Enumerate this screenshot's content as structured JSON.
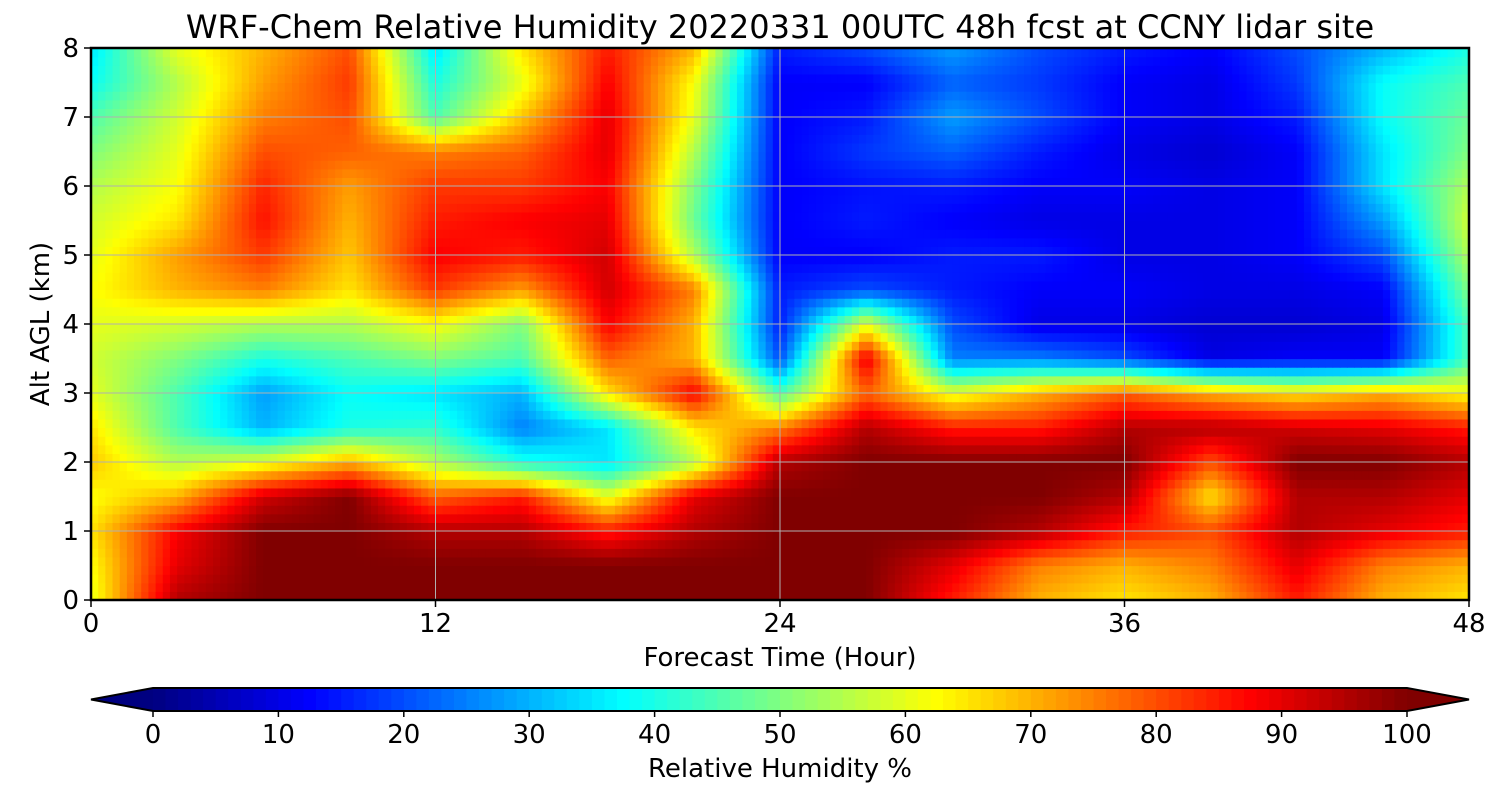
{
  "chart_data": {
    "type": "heatmap",
    "title": "WRF-Chem Relative Humidity 20220331 00UTC 48h fcst at CCNY lidar site",
    "xlabel": "Forecast Time (Hour)",
    "ylabel": "Alt AGL (km)",
    "xlim": [
      0,
      48
    ],
    "ylim": [
      0,
      8
    ],
    "xticks": [
      0,
      12,
      24,
      36,
      48
    ],
    "yticks": [
      0,
      1,
      2,
      3,
      4,
      5,
      6,
      7,
      8
    ],
    "grid": true,
    "colormap": "jet",
    "x": [
      0,
      3,
      6,
      9,
      12,
      15,
      18,
      21,
      24,
      27,
      30,
      33,
      36,
      39,
      42,
      45,
      48
    ],
    "y": [
      0,
      0.5,
      1,
      1.5,
      2,
      2.5,
      3,
      3.5,
      4,
      4.5,
      5,
      5.5,
      6,
      6.5,
      7,
      7.5,
      8
    ],
    "z": [
      [
        60,
        95,
        100,
        100,
        100,
        100,
        100,
        100,
        100,
        100,
        85,
        70,
        65,
        70,
        85,
        70,
        65
      ],
      [
        62,
        90,
        100,
        100,
        100,
        100,
        100,
        100,
        100,
        100,
        90,
        75,
        70,
        75,
        90,
        75,
        70
      ],
      [
        65,
        88,
        100,
        100,
        95,
        95,
        85,
        95,
        100,
        100,
        100,
        95,
        85,
        80,
        95,
        90,
        85
      ],
      [
        62,
        70,
        92,
        100,
        78,
        85,
        60,
        90,
        100,
        100,
        100,
        100,
        95,
        65,
        95,
        95,
        90
      ],
      [
        68,
        55,
        60,
        70,
        55,
        40,
        35,
        55,
        95,
        100,
        100,
        100,
        100,
        80,
        100,
        100,
        95
      ],
      [
        65,
        45,
        30,
        40,
        42,
        25,
        35,
        65,
        75,
        95,
        85,
        85,
        95,
        95,
        92,
        90,
        85
      ],
      [
        60,
        45,
        28,
        38,
        35,
        30,
        65,
        88,
        45,
        78,
        60,
        70,
        78,
        70,
        65,
        70,
        62
      ],
      [
        58,
        50,
        40,
        45,
        50,
        45,
        78,
        70,
        20,
        90,
        25,
        25,
        20,
        10,
        12,
        12,
        45
      ],
      [
        60,
        58,
        55,
        55,
        62,
        50,
        88,
        70,
        15,
        60,
        20,
        10,
        10,
        8,
        8,
        10,
        45
      ],
      [
        62,
        70,
        75,
        65,
        82,
        72,
        92,
        75,
        15,
        20,
        15,
        12,
        12,
        10,
        10,
        12,
        50
      ],
      [
        60,
        72,
        82,
        68,
        88,
        85,
        92,
        55,
        12,
        12,
        15,
        15,
        10,
        10,
        12,
        20,
        55
      ],
      [
        58,
        65,
        86,
        70,
        85,
        88,
        90,
        48,
        12,
        15,
        12,
        10,
        10,
        10,
        12,
        28,
        58
      ],
      [
        55,
        62,
        84,
        72,
        82,
        82,
        88,
        50,
        12,
        14,
        15,
        12,
        12,
        10,
        12,
        35,
        55
      ],
      [
        50,
        60,
        80,
        78,
        75,
        78,
        90,
        55,
        12,
        18,
        22,
        15,
        10,
        8,
        12,
        35,
        50
      ],
      [
        45,
        58,
        75,
        80,
        45,
        68,
        90,
        60,
        12,
        15,
        28,
        20,
        12,
        10,
        15,
        38,
        48
      ],
      [
        38,
        55,
        72,
        82,
        40,
        60,
        88,
        62,
        12,
        12,
        22,
        18,
        12,
        10,
        18,
        38,
        45
      ],
      [
        35,
        60,
        70,
        80,
        35,
        65,
        85,
        70,
        15,
        20,
        28,
        20,
        15,
        12,
        20,
        30,
        40
      ]
    ],
    "colorbar": {
      "label": "Relative Humidity %",
      "ticks": [
        0,
        10,
        20,
        30,
        40,
        50,
        60,
        70,
        80,
        90,
        100
      ],
      "range": [
        0,
        100
      ],
      "extend": "both"
    }
  }
}
